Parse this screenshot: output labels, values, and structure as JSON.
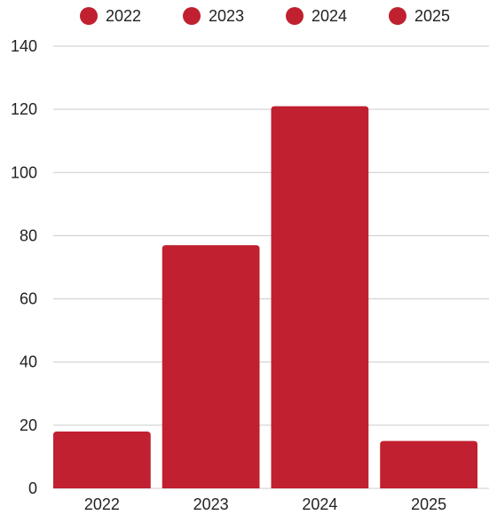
{
  "chart_data": {
    "type": "bar",
    "categories": [
      "2022",
      "2023",
      "2024",
      "2025"
    ],
    "values": [
      18,
      77,
      121,
      15
    ],
    "legend": [
      "2022",
      "2023",
      "2024",
      "2025"
    ],
    "legend_position": "top",
    "ylim": [
      0,
      140
    ],
    "yticks": [
      "0",
      "20",
      "40",
      "60",
      "80",
      "100",
      "120",
      "140"
    ],
    "grid": true,
    "title": "",
    "xlabel": "",
    "ylabel": "",
    "colors": {
      "bar": "#C0202F",
      "grid": "#CCCCCC",
      "text": "#222222"
    }
  }
}
